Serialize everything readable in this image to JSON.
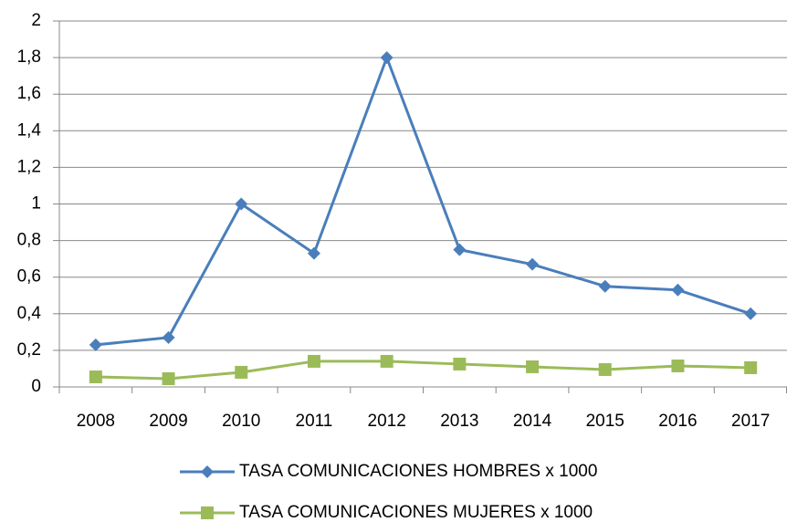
{
  "chart_data": {
    "type": "line",
    "categories": [
      "2008",
      "2009",
      "2010",
      "2011",
      "2012",
      "2013",
      "2014",
      "2015",
      "2016",
      "2017"
    ],
    "series": [
      {
        "name": "TASA COMUNICACIONES HOMBRES x 1000",
        "color": "#4a7ebb",
        "marker": "diamond",
        "values": [
          0.23,
          0.27,
          1.0,
          0.73,
          1.8,
          0.75,
          0.67,
          0.55,
          0.53,
          0.4
        ]
      },
      {
        "name": "TASA COMUNICACIONES MUJERES x 1000",
        "color": "#9bbb59",
        "marker": "square",
        "values": [
          0.055,
          0.045,
          0.08,
          0.14,
          0.14,
          0.125,
          0.11,
          0.095,
          0.115,
          0.105
        ]
      }
    ],
    "ylim": [
      0,
      2
    ],
    "yticks": [
      0,
      {
        "value": 0.2,
        "label": "0,2"
      },
      {
        "value": 0.4,
        "label": "0,4"
      },
      {
        "value": 0.6,
        "label": "0,6"
      },
      {
        "value": 0.8,
        "label": "0,8"
      },
      1,
      {
        "value": 1.2,
        "label": "1,2"
      },
      {
        "value": 1.4,
        "label": "1,4"
      },
      {
        "value": 1.6,
        "label": "1,6"
      },
      {
        "value": 1.8,
        "label": "1,8"
      },
      2
    ],
    "grid": true,
    "legend": "bottom"
  }
}
